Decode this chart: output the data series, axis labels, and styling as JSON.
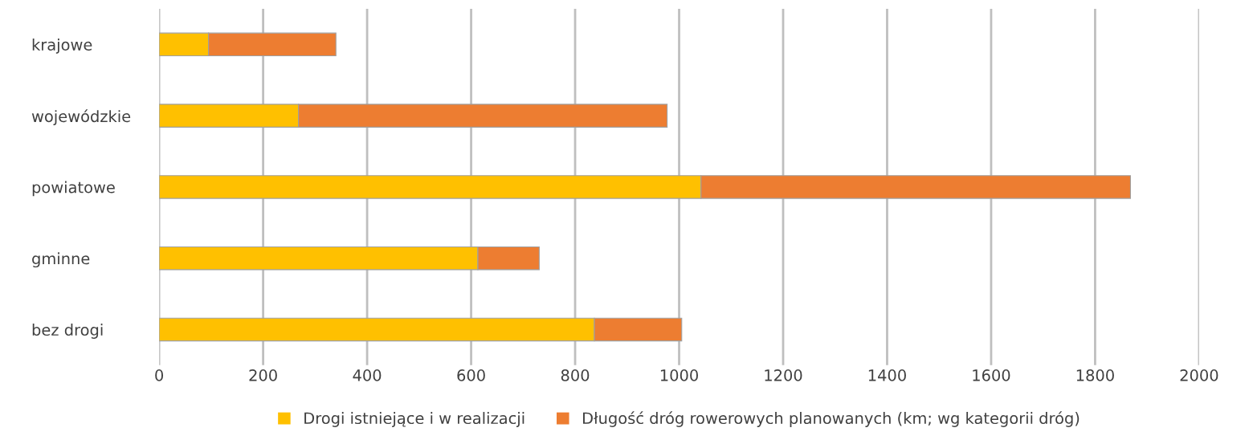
{
  "chart_data": {
    "type": "bar",
    "orientation": "horizontal",
    "stacked": true,
    "categories": [
      "krajowe",
      "wojewódzkie",
      "powiatowe",
      "gminne",
      "bez drogi"
    ],
    "series": [
      {
        "name": "Drogi istniejące i w realizacji",
        "color": "#ffc000",
        "values": [
          95,
          268,
          1042,
          613,
          837
        ]
      },
      {
        "name": "Długość dróg rowerowych planowanych (km; wg kategorii dróg)",
        "color": "#ed7d31",
        "values": [
          245,
          709,
          826,
          118,
          168
        ]
      }
    ],
    "xlim": [
      0,
      2000
    ],
    "xticks": [
      0,
      200,
      400,
      600,
      800,
      1000,
      1200,
      1400,
      1600,
      1800,
      2000
    ],
    "grid": "x",
    "legend": "bottom"
  }
}
